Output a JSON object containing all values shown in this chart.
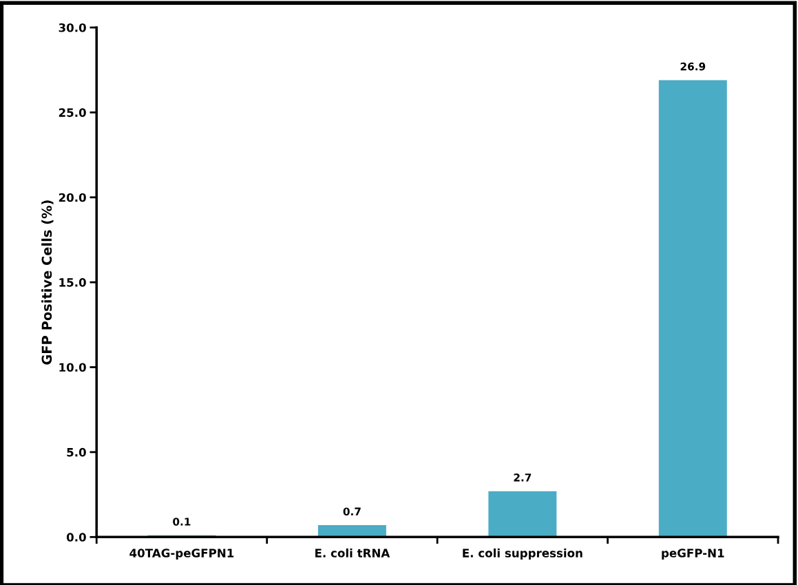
{
  "chart_data": {
    "type": "bar",
    "ylabel": "GFP Positive Cells (%)",
    "categories": [
      "40TAG-peGFPN1",
      "E. coli tRNA",
      "E. coli suppression",
      "peGFP-N1"
    ],
    "values": [
      0.1,
      0.7,
      2.7,
      26.9
    ],
    "color": "#4bacc6",
    "ylim": [
      0,
      30
    ],
    "yticks": [
      {
        "value": 0,
        "label": "0.0"
      },
      {
        "value": 5,
        "label": "5.0"
      },
      {
        "value": 10,
        "label": "10.0"
      },
      {
        "value": 15,
        "label": "15.0"
      },
      {
        "value": 20,
        "label": "20.0"
      },
      {
        "value": 25,
        "label": "25.0"
      },
      {
        "value": 30,
        "label": "30.0"
      }
    ],
    "data_labels": true,
    "grid": false,
    "legend": false
  }
}
